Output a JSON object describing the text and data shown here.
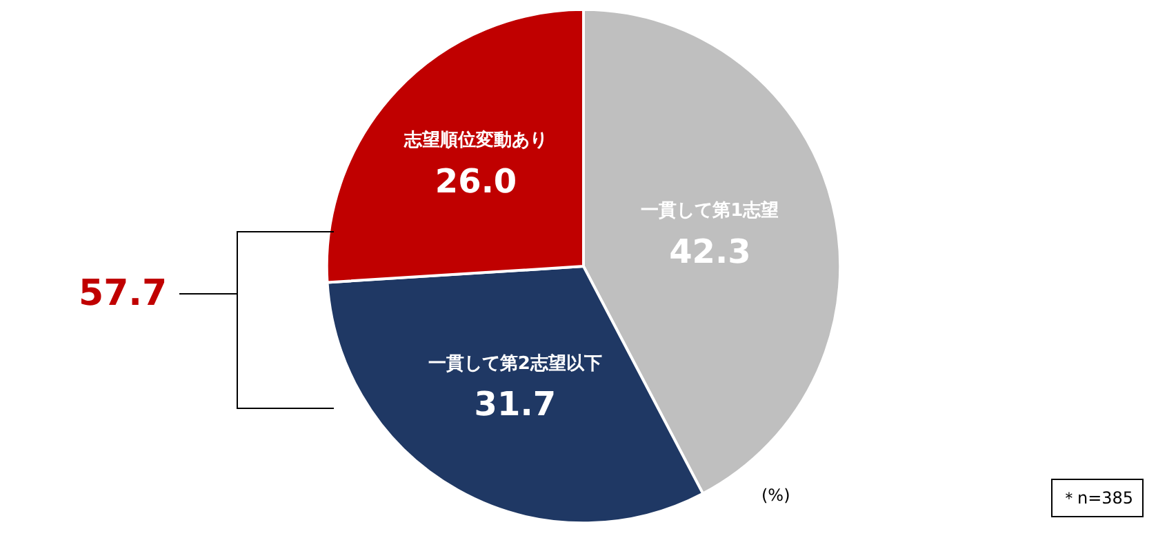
{
  "chart_data": {
    "type": "pie",
    "categories": [
      "一貫して第1志望",
      "一貫して第2志望以下",
      "志望順位変動あり"
    ],
    "values": [
      42.3,
      31.7,
      26.0
    ],
    "value_labels": [
      "42.3",
      "31.7",
      "26.0"
    ],
    "colors": [
      "#bfbfbf",
      "#1f3864",
      "#c00000"
    ],
    "legend": false,
    "annotations": [
      "57.7",
      "(%)",
      "＊n=385"
    ]
  }
}
